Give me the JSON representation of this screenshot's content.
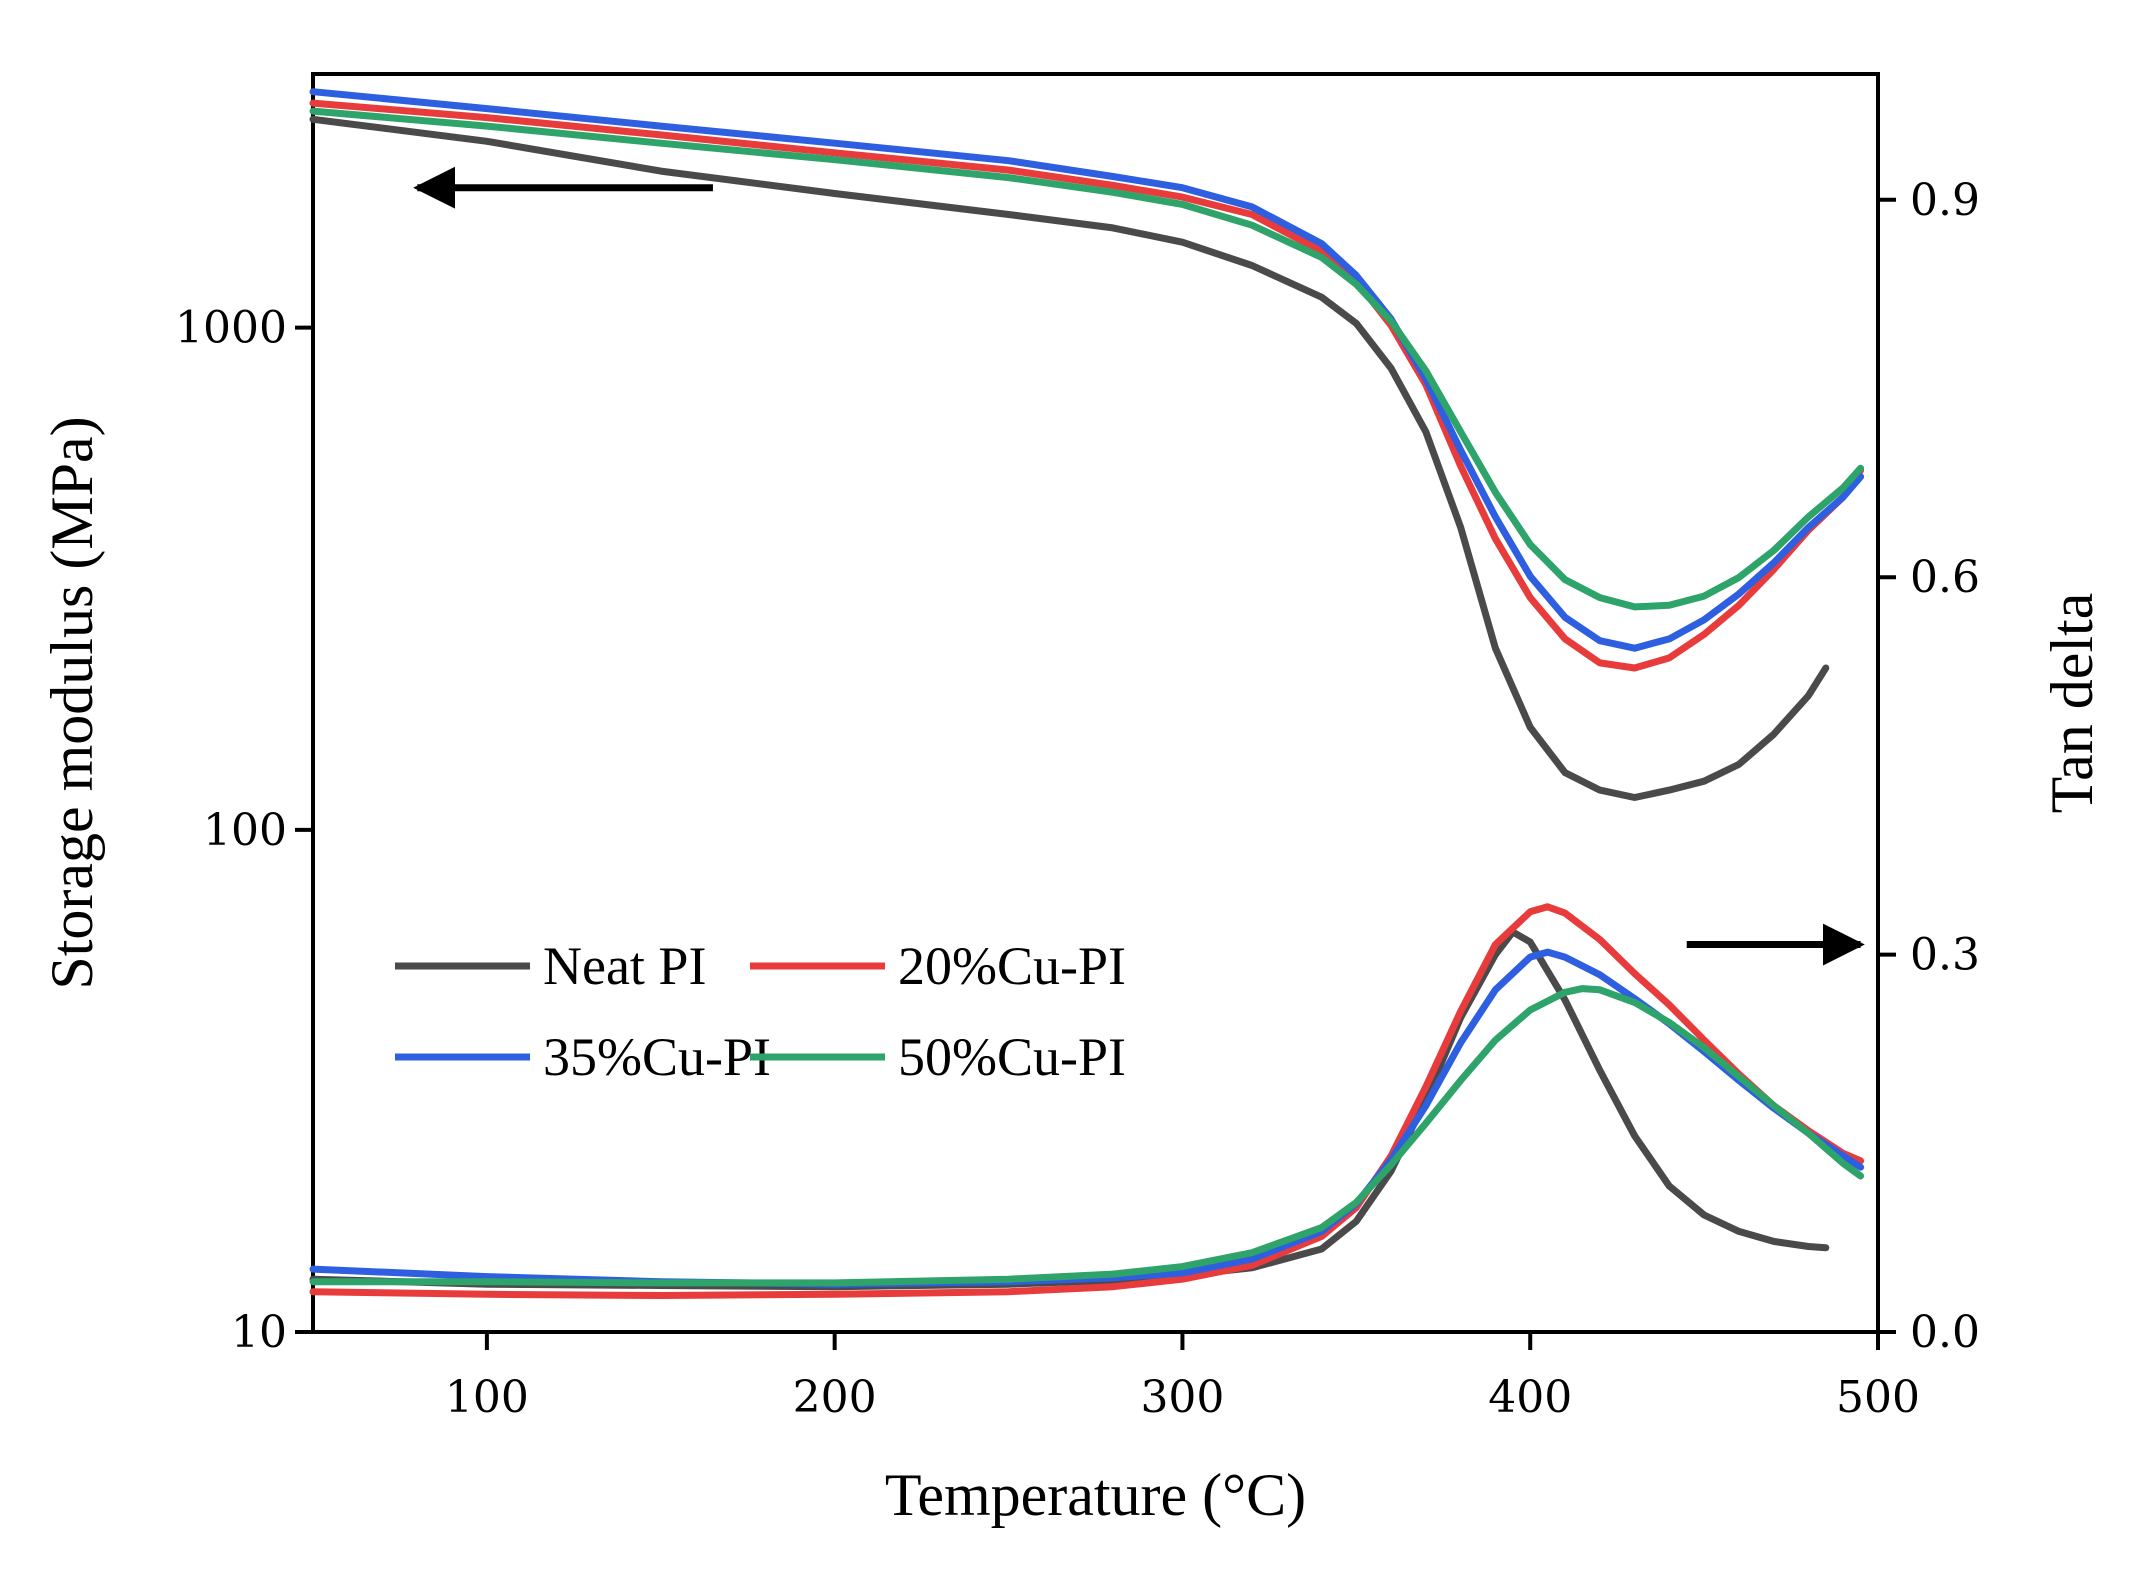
{
  "chart_data": {
    "type": "line",
    "title": "",
    "xlabel": "Temperature (°C)",
    "ylabel_left": "Storage modulus (MPa)",
    "ylabel_right": "Tan delta",
    "xlim": [
      50,
      500
    ],
    "ylim_left": [
      10,
      3200
    ],
    "ylim_left_scale": "log",
    "ylim_right": [
      0.0,
      1.0
    ],
    "x_ticks": [
      100,
      200,
      300,
      400,
      500
    ],
    "y_left_ticks": [
      {
        "value": 10,
        "label": "10"
      },
      {
        "value": 100,
        "label": "100"
      },
      {
        "value": 1000,
        "label": "1000"
      }
    ],
    "y_right_ticks": [
      {
        "value": 0.0,
        "label": "0.0"
      },
      {
        "value": 0.3,
        "label": "0.3"
      },
      {
        "value": 0.6,
        "label": "0.6"
      },
      {
        "value": 0.9,
        "label": "0.9"
      }
    ],
    "annotations": [
      {
        "type": "arrow",
        "direction": "left",
        "meaning": "storage modulus curves read on left axis",
        "x_from": 165,
        "x_to": 80,
        "y_left": 1900
      },
      {
        "type": "arrow",
        "direction": "right",
        "meaning": "tan delta curves read on right axis",
        "x_from": 445,
        "x_to": 495,
        "y_right": 0.308
      }
    ],
    "legend_position": "center-left",
    "series": [
      {
        "name": "Neat PI",
        "color": "#4a4a4a",
        "axis": "left",
        "quantity": "storage modulus",
        "points": [
          [
            50,
            2600
          ],
          [
            100,
            2350
          ],
          [
            150,
            2050
          ],
          [
            200,
            1850
          ],
          [
            250,
            1680
          ],
          [
            280,
            1580
          ],
          [
            300,
            1480
          ],
          [
            320,
            1330
          ],
          [
            340,
            1150
          ],
          [
            350,
            1020
          ],
          [
            360,
            830
          ],
          [
            370,
            620
          ],
          [
            380,
            400
          ],
          [
            390,
            230
          ],
          [
            400,
            160
          ],
          [
            410,
            130
          ],
          [
            420,
            120
          ],
          [
            430,
            116
          ],
          [
            440,
            120
          ],
          [
            450,
            125
          ],
          [
            460,
            135
          ],
          [
            470,
            155
          ],
          [
            480,
            185
          ],
          [
            485,
            210
          ]
        ]
      },
      {
        "name": "20%Cu-PI",
        "color": "#e83c3c",
        "axis": "left",
        "quantity": "storage modulus",
        "points": [
          [
            50,
            2800
          ],
          [
            100,
            2620
          ],
          [
            150,
            2420
          ],
          [
            200,
            2230
          ],
          [
            250,
            2060
          ],
          [
            280,
            1920
          ],
          [
            300,
            1820
          ],
          [
            320,
            1680
          ],
          [
            340,
            1420
          ],
          [
            350,
            1240
          ],
          [
            360,
            1010
          ],
          [
            370,
            770
          ],
          [
            380,
            530
          ],
          [
            390,
            380
          ],
          [
            400,
            290
          ],
          [
            410,
            240
          ],
          [
            420,
            215
          ],
          [
            430,
            210
          ],
          [
            440,
            220
          ],
          [
            450,
            245
          ],
          [
            460,
            280
          ],
          [
            470,
            330
          ],
          [
            480,
            395
          ],
          [
            490,
            460
          ],
          [
            495,
            520
          ]
        ]
      },
      {
        "name": "35%Cu-PI",
        "color": "#2d5fe0",
        "axis": "left",
        "quantity": "storage modulus",
        "points": [
          [
            50,
            2950
          ],
          [
            100,
            2730
          ],
          [
            150,
            2520
          ],
          [
            200,
            2330
          ],
          [
            250,
            2150
          ],
          [
            280,
            2000
          ],
          [
            300,
            1900
          ],
          [
            320,
            1740
          ],
          [
            340,
            1470
          ],
          [
            350,
            1270
          ],
          [
            360,
            1040
          ],
          [
            370,
            790
          ],
          [
            380,
            570
          ],
          [
            390,
            420
          ],
          [
            400,
            320
          ],
          [
            410,
            265
          ],
          [
            420,
            238
          ],
          [
            430,
            230
          ],
          [
            440,
            240
          ],
          [
            450,
            262
          ],
          [
            460,
            295
          ],
          [
            470,
            340
          ],
          [
            480,
            400
          ],
          [
            490,
            460
          ],
          [
            495,
            505
          ]
        ]
      },
      {
        "name": "50%Cu-PI",
        "color": "#2ea36a",
        "axis": "left",
        "quantity": "storage modulus",
        "points": [
          [
            50,
            2700
          ],
          [
            100,
            2520
          ],
          [
            150,
            2330
          ],
          [
            200,
            2160
          ],
          [
            250,
            1990
          ],
          [
            280,
            1860
          ],
          [
            300,
            1760
          ],
          [
            320,
            1600
          ],
          [
            340,
            1380
          ],
          [
            350,
            1220
          ],
          [
            360,
            1030
          ],
          [
            370,
            820
          ],
          [
            380,
            620
          ],
          [
            390,
            470
          ],
          [
            400,
            370
          ],
          [
            410,
            315
          ],
          [
            420,
            290
          ],
          [
            430,
            278
          ],
          [
            440,
            280
          ],
          [
            450,
            292
          ],
          [
            460,
            318
          ],
          [
            470,
            360
          ],
          [
            480,
            420
          ],
          [
            490,
            480
          ],
          [
            495,
            525
          ]
        ]
      },
      {
        "name": "Neat PI",
        "color": "#4a4a4a",
        "axis": "right",
        "quantity": "tan delta",
        "points": [
          [
            50,
            0.042
          ],
          [
            100,
            0.038
          ],
          [
            150,
            0.037
          ],
          [
            200,
            0.036
          ],
          [
            250,
            0.038
          ],
          [
            280,
            0.041
          ],
          [
            300,
            0.045
          ],
          [
            320,
            0.051
          ],
          [
            340,
            0.066
          ],
          [
            350,
            0.088
          ],
          [
            360,
            0.128
          ],
          [
            370,
            0.185
          ],
          [
            380,
            0.25
          ],
          [
            390,
            0.3
          ],
          [
            395,
            0.318
          ],
          [
            400,
            0.31
          ],
          [
            410,
            0.264
          ],
          [
            420,
            0.208
          ],
          [
            430,
            0.156
          ],
          [
            440,
            0.116
          ],
          [
            450,
            0.093
          ],
          [
            460,
            0.08
          ],
          [
            470,
            0.072
          ],
          [
            480,
            0.068
          ],
          [
            485,
            0.067
          ]
        ]
      },
      {
        "name": "20%Cu-PI",
        "color": "#e83c3c",
        "axis": "right",
        "quantity": "tan delta",
        "points": [
          [
            50,
            0.032
          ],
          [
            100,
            0.03
          ],
          [
            150,
            0.029
          ],
          [
            200,
            0.03
          ],
          [
            250,
            0.032
          ],
          [
            280,
            0.036
          ],
          [
            300,
            0.042
          ],
          [
            320,
            0.053
          ],
          [
            340,
            0.076
          ],
          [
            350,
            0.099
          ],
          [
            360,
            0.14
          ],
          [
            370,
            0.195
          ],
          [
            380,
            0.255
          ],
          [
            390,
            0.308
          ],
          [
            400,
            0.334
          ],
          [
            405,
            0.338
          ],
          [
            410,
            0.333
          ],
          [
            420,
            0.312
          ],
          [
            430,
            0.285
          ],
          [
            440,
            0.26
          ],
          [
            450,
            0.232
          ],
          [
            460,
            0.205
          ],
          [
            470,
            0.18
          ],
          [
            480,
            0.16
          ],
          [
            490,
            0.142
          ],
          [
            495,
            0.136
          ]
        ]
      },
      {
        "name": "35%Cu-PI",
        "color": "#2d5fe0",
        "axis": "right",
        "quantity": "tan delta",
        "points": [
          [
            50,
            0.05
          ],
          [
            100,
            0.044
          ],
          [
            150,
            0.04
          ],
          [
            200,
            0.038
          ],
          [
            250,
            0.04
          ],
          [
            280,
            0.043
          ],
          [
            300,
            0.047
          ],
          [
            320,
            0.058
          ],
          [
            340,
            0.08
          ],
          [
            350,
            0.102
          ],
          [
            360,
            0.137
          ],
          [
            370,
            0.18
          ],
          [
            380,
            0.23
          ],
          [
            390,
            0.272
          ],
          [
            400,
            0.298
          ],
          [
            405,
            0.302
          ],
          [
            410,
            0.298
          ],
          [
            420,
            0.284
          ],
          [
            430,
            0.265
          ],
          [
            440,
            0.245
          ],
          [
            450,
            0.223
          ],
          [
            460,
            0.2
          ],
          [
            470,
            0.178
          ],
          [
            480,
            0.158
          ],
          [
            490,
            0.14
          ],
          [
            495,
            0.131
          ]
        ]
      },
      {
        "name": "50%Cu-PI",
        "color": "#2ea36a",
        "axis": "right",
        "quantity": "tan delta",
        "points": [
          [
            50,
            0.04
          ],
          [
            100,
            0.04
          ],
          [
            150,
            0.039
          ],
          [
            200,
            0.039
          ],
          [
            250,
            0.042
          ],
          [
            280,
            0.046
          ],
          [
            300,
            0.052
          ],
          [
            320,
            0.063
          ],
          [
            340,
            0.083
          ],
          [
            350,
            0.103
          ],
          [
            360,
            0.133
          ],
          [
            370,
            0.166
          ],
          [
            380,
            0.2
          ],
          [
            390,
            0.232
          ],
          [
            400,
            0.256
          ],
          [
            410,
            0.27
          ],
          [
            415,
            0.273
          ],
          [
            420,
            0.272
          ],
          [
            430,
            0.262
          ],
          [
            440,
            0.246
          ],
          [
            450,
            0.226
          ],
          [
            460,
            0.203
          ],
          [
            470,
            0.18
          ],
          [
            480,
            0.158
          ],
          [
            490,
            0.134
          ],
          [
            495,
            0.124
          ]
        ]
      }
    ]
  }
}
